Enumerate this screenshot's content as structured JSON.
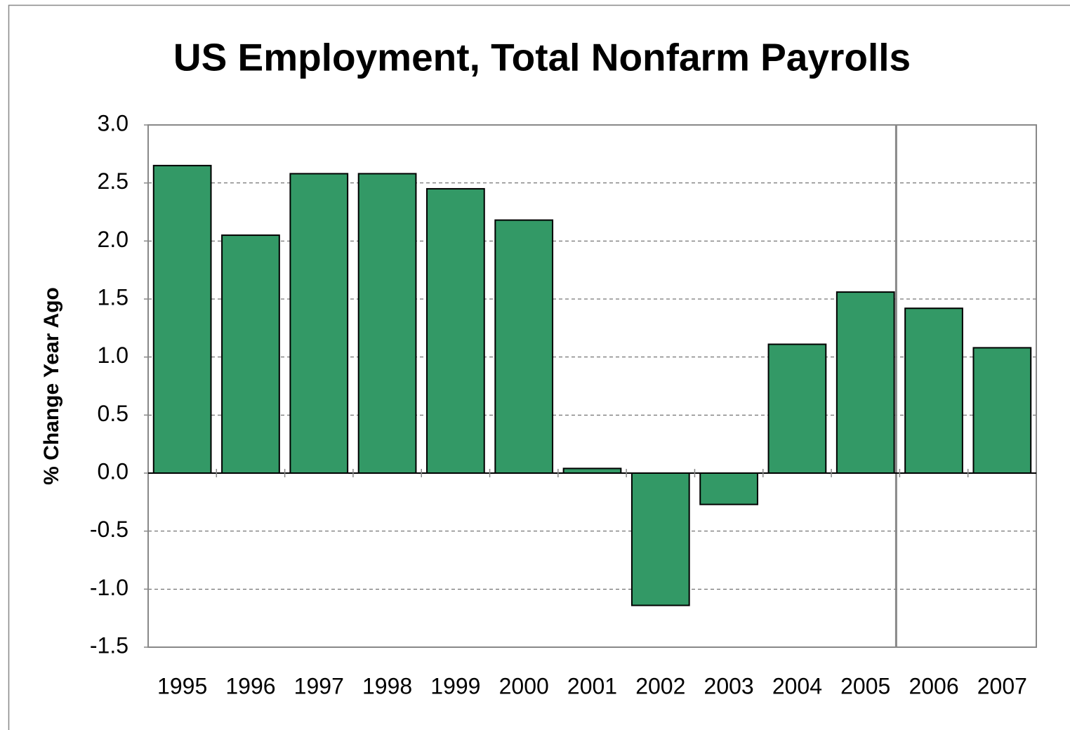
{
  "chart_data": {
    "type": "bar",
    "title": "US Employment, Total Nonfarm Payrolls",
    "y_label": "% Change Year Ago",
    "categories": [
      "1995",
      "1996",
      "1997",
      "1998",
      "1999",
      "2000",
      "2001",
      "2002",
      "2003",
      "2004",
      "2005",
      "2006",
      "2007"
    ],
    "values": [
      2.65,
      2.05,
      2.58,
      2.58,
      2.45,
      2.18,
      0.04,
      -1.14,
      -0.27,
      1.11,
      1.56,
      1.42,
      1.08
    ],
    "color": "#339966",
    "ylim": [
      -1.5,
      3
    ],
    "yticks": [
      {
        "value": 3,
        "label": "3.0"
      },
      2.5,
      {
        "value": 2,
        "label": "2.0"
      },
      1.5,
      {
        "value": 1,
        "label": "1.0"
      },
      0.5,
      {
        "value": 0,
        "label": "0.0"
      },
      -0.5,
      {
        "value": -1,
        "label": "-1.0"
      },
      -1.5
    ],
    "grid": true
  }
}
